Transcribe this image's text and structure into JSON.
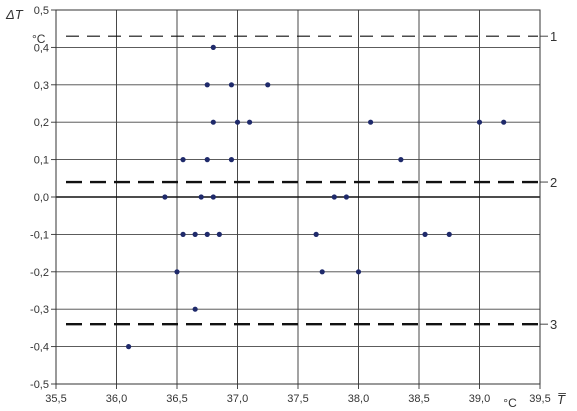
{
  "chart_data": {
    "type": "scatter",
    "title": "",
    "xlabel": "T̅",
    "ylabel": "ΔT",
    "x_unit": "°C",
    "y_unit": "°C",
    "xlim": [
      35.5,
      39.5
    ],
    "ylim": [
      -0.5,
      0.5
    ],
    "x_ticks": [
      35.5,
      36.0,
      36.5,
      37.0,
      37.5,
      38.0,
      38.5,
      39.0,
      39.5
    ],
    "y_ticks": [
      -0.5,
      -0.4,
      -0.3,
      -0.2,
      -0.1,
      0.0,
      0.1,
      0.2,
      0.3,
      0.4,
      0.5
    ],
    "x_tick_labels": [
      "35,5",
      "36,0",
      "36,5",
      "37,0",
      "37,5",
      "38,0",
      "38,5",
      "39,0",
      "39,5"
    ],
    "y_tick_labels": [
      "-0,5",
      "-0,4",
      "-0,3",
      "-0,2",
      "-0,1",
      "0,0",
      "0,1",
      "0,2",
      "0,3",
      "0,4",
      "0,5"
    ],
    "grid": true,
    "marker_color": "#1f2a6b",
    "points": [
      {
        "x": 36.1,
        "y": -0.4
      },
      {
        "x": 36.4,
        "y": 0.0
      },
      {
        "x": 36.5,
        "y": -0.2
      },
      {
        "x": 36.55,
        "y": 0.1
      },
      {
        "x": 36.55,
        "y": -0.1
      },
      {
        "x": 36.65,
        "y": -0.1
      },
      {
        "x": 36.65,
        "y": -0.3
      },
      {
        "x": 36.7,
        "y": 0.0
      },
      {
        "x": 36.75,
        "y": 0.3
      },
      {
        "x": 36.75,
        "y": 0.1
      },
      {
        "x": 36.75,
        "y": -0.1
      },
      {
        "x": 36.8,
        "y": 0.4
      },
      {
        "x": 36.8,
        "y": 0.2
      },
      {
        "x": 36.8,
        "y": 0.0
      },
      {
        "x": 36.85,
        "y": -0.1
      },
      {
        "x": 36.95,
        "y": 0.3
      },
      {
        "x": 36.95,
        "y": 0.1
      },
      {
        "x": 37.0,
        "y": 0.2
      },
      {
        "x": 37.1,
        "y": 0.2
      },
      {
        "x": 37.25,
        "y": 0.3
      },
      {
        "x": 37.65,
        "y": -0.1
      },
      {
        "x": 37.7,
        "y": -0.2
      },
      {
        "x": 37.8,
        "y": 0.0
      },
      {
        "x": 37.9,
        "y": 0.0
      },
      {
        "x": 38.0,
        "y": -0.2
      },
      {
        "x": 38.1,
        "y": 0.2
      },
      {
        "x": 38.35,
        "y": 0.1
      },
      {
        "x": 38.55,
        "y": -0.1
      },
      {
        "x": 38.75,
        "y": -0.1
      },
      {
        "x": 39.0,
        "y": 0.2
      },
      {
        "x": 39.2,
        "y": 0.2
      }
    ],
    "reference_lines": [
      {
        "label": "1",
        "y": 0.43,
        "style": "dashed-thin"
      },
      {
        "label": "2",
        "y": 0.04,
        "style": "dashed-thick"
      },
      {
        "label": "3",
        "y": -0.34,
        "style": "dashed-thick"
      }
    ]
  }
}
